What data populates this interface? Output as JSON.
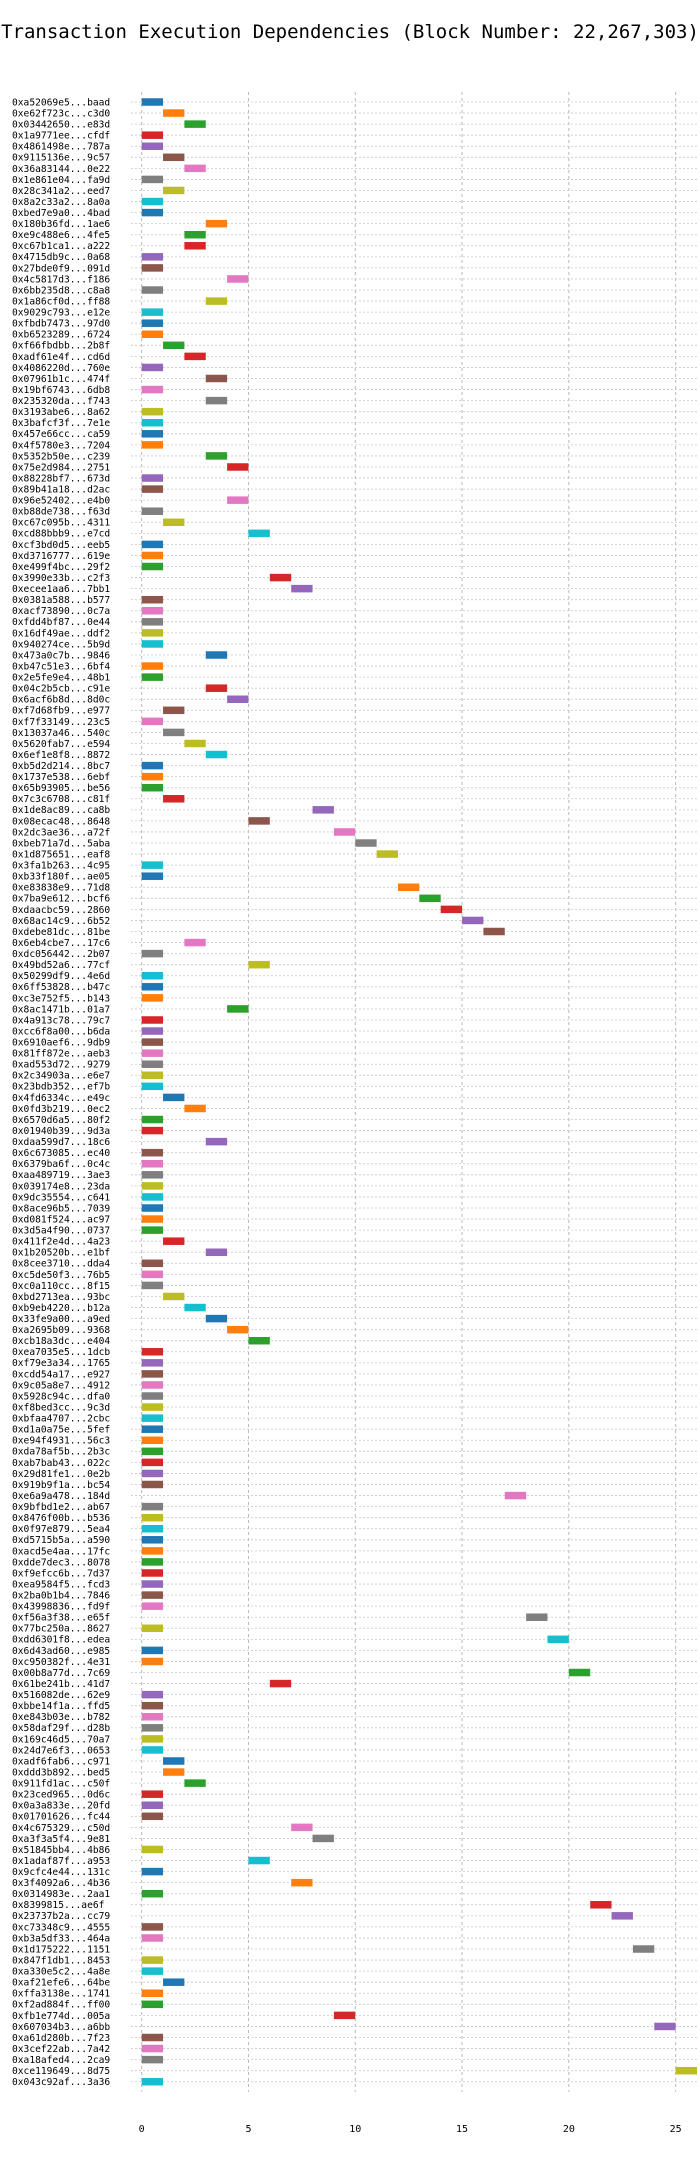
{
  "chart_data": {
    "type": "bar",
    "orientation": "horizontal",
    "title": "Transaction Execution Dependencies (Block Number: 22,267,303)",
    "xlabel": "",
    "ylabel": "",
    "xlim": [
      -0.5,
      26.0
    ],
    "xticks": [
      0,
      5,
      10,
      15,
      20,
      25
    ],
    "grid": true,
    "palette": [
      "#1f77b4",
      "#ff7f0e",
      "#2ca02c",
      "#d62728",
      "#9467bd",
      "#8c564b",
      "#e377c2",
      "#7f7f7f",
      "#bcbd22",
      "#17becf"
    ],
    "categories": [
      "0xa52069e5...baad",
      "0xe62f723c...c3d0",
      "0x03442650...e83d",
      "0x1a9771ee...cfdf",
      "0x4861498e...787a",
      "0x9115136e...9c57",
      "0x36a83144...0e22",
      "0x1e861e04...fa9d",
      "0x28c341a2...eed7",
      "0x8a2c33a2...8a0a",
      "0xbed7e9a0...4bad",
      "0x180b36fd...1ae6",
      "0xe9c488e6...4fe5",
      "0xc67b1ca1...a222",
      "0x4715db9c...0a68",
      "0x27bde0f9...091d",
      "0x4c5817d3...f186",
      "0x6bb235d8...c8a8",
      "0x1a86cf0d...ff88",
      "0x9029c793...e12e",
      "0xfbdb7473...97d0",
      "0xb6523289...6724",
      "0xf66fbdbb...2b8f",
      "0xadf61e4f...cd6d",
      "0x4086220d...760e",
      "0x07961b1c...474f",
      "0x19bf6743...6db8",
      "0x235320da...f743",
      "0x3193abe6...8a62",
      "0x3bafcf3f...7e1e",
      "0x457e66cc...ca59",
      "0x4f5780e3...7204",
      "0x5352b50e...c239",
      "0x75e2d984...2751",
      "0x88228bf7...673d",
      "0x89b41a18...d2ac",
      "0x96e52402...e4b0",
      "0xb88de738...f63d",
      "0xc67c095b...4311",
      "0xcd88bbb9...e7cd",
      "0xcf3bd0d5...eeb5",
      "0xd3716777...619e",
      "0xe499f4bc...29f2",
      "0x3990e33b...c2f3",
      "0xecee1aa6...7bb1",
      "0x0381a588...b577",
      "0xacf73890...0c7a",
      "0xfdd4bf87...0e44",
      "0x16df49ae...ddf2",
      "0x940274ce...5b9d",
      "0x473a0c7b...9846",
      "0xb47c51e3...6bf4",
      "0x2e5fe9e4...48b1",
      "0x04c2b5cb...c91e",
      "0x6acf6b8d...8d0c",
      "0xf7d68fb9...e977",
      "0xf7f33149...23c5",
      "0x13037a46...540c",
      "0x5620fab7...e594",
      "0x6ef1e8f8...8872",
      "0xb5d2d214...8bc7",
      "0x1737e538...6ebf",
      "0x65b93905...be56",
      "0x7c3c6708...c81f",
      "0x1de8ac89...ca8b",
      "0x08ecac48...8648",
      "0x2dc3ae36...a72f",
      "0xbeb71a7d...5aba",
      "0x1d875651...eaf8",
      "0x3fa1b263...4c95",
      "0xb33f180f...ae05",
      "0xe83838e9...71d8",
      "0x7ba9e612...bcf6",
      "0xdaacbc59...2860",
      "0x68ac14c9...6b52",
      "0xdebe81dc...81be",
      "0x6eb4cbe7...17c6",
      "0xdc056442...2b07",
      "0x49bd52a6...77cf",
      "0x50299df9...4e6d",
      "0x6ff53828...b47c",
      "0xc3e752f5...b143",
      "0x8ac1471b...01a7",
      "0x4a913c78...79c7",
      "0xcc6f8a00...b6da",
      "0x6910aef6...9db9",
      "0x81ff872e...aeb3",
      "0xad553d72...9279",
      "0x2c34903a...e6e7",
      "0x23bdb352...ef7b",
      "0x4fd6334c...e49c",
      "0x0fd3b219...0ec2",
      "0x6570d6a5...80f2",
      "0x01940b39...9d3a",
      "0xdaa599d7...18c6",
      "0x6c673085...ec40",
      "0x6379ba6f...0c4c",
      "0xaa489719...3ae3",
      "0x039174e8...23da",
      "0x9dc35554...c641",
      "0x8ace96b5...7039",
      "0xd081f524...ac97",
      "0x3d5a4f90...0737",
      "0x411f2e4d...4a23",
      "0x1b20520b...e1bf",
      "0x8cee3710...dda4",
      "0xc5de50f3...76b5",
      "0xc0a110cc...8f15",
      "0xbd2713ea...93bc",
      "0xb9eb4220...b12a",
      "0x33fe9a00...a9ed",
      "0xa2695b09...9368",
      "0xcb18a3dc...e404",
      "0xea7035e5...1dcb",
      "0xf79e3a34...1765",
      "0xcdd54a17...e927",
      "0x9c05a8e7...4912",
      "0x5928c94c...dfa0",
      "0xf8bed3cc...9c3d",
      "0xbfaa4707...2cbc",
      "0xd1a0a75e...5fef",
      "0xe94f4931...56c3",
      "0xda78af5b...2b3c",
      "0xab7bab43...022c",
      "0x29d81fe1...0e2b",
      "0x919b9f1a...bc54",
      "0xe6a9a478...184d",
      "0x9bfbd1e2...ab67",
      "0x8476f00b...b536",
      "0x0f97e879...5ea4",
      "0xd5715b5a...a590",
      "0xacd5e4aa...17fc",
      "0xdde7dec3...8078",
      "0xf9efcc6b...7d37",
      "0xea9584f5...fcd3",
      "0x2ba0b1b4...7846",
      "0x43998836...fd9f",
      "0xf56a3f38...e65f",
      "0x77bc250a...8627",
      "0xdd6301f8...edea",
      "0x6d43ad60...e985",
      "0xc950382f...4e31",
      "0x00b8a77d...7c69",
      "0x61be241b...41d7",
      "0x516082de...62e9",
      "0xbbe14f1a...ffd5",
      "0xe843b03e...b782",
      "0x58daf29f...d28b",
      "0x169c46d5...70a7",
      "0x24d7e6f3...0653",
      "0xadf6fab6...c971",
      "0xddd3b892...bed5",
      "0x911fd1ac...c50f",
      "0x23ced965...0d6c",
      "0x0a3a833e...20fd",
      "0x01701626...fc44",
      "0x4c675329...c50d",
      "0xa3f3a5f4...9e81",
      "0x51845bb4...4b86",
      "0x1adaf87f...a953",
      "0x9cfc4e44...131c",
      "0x3f4092a6...4b36",
      "0x0314983e...2aa1",
      "0x8399815...ae6f",
      "0x23737b2a...cc79",
      "0xc73348c9...4555",
      "0xb3a5df33...464a",
      "0x1d175222...1151",
      "0x847f1db1...8453",
      "0xa330e5c2...4a8e",
      "0xaf21efe6...64be",
      "0xffa3138e...1741",
      "0xf2ad884f...ff00",
      "0xfb1e774d...005a",
      "0x607034b3...a6bb",
      "0xa61d280b...7f23",
      "0x3cef22ab...7a42",
      "0xa18afed4...2ca9",
      "0xce119649...8d75",
      "0x043c92af...3a36"
    ],
    "series": [
      {
        "start": [
          0,
          1,
          2,
          0,
          0,
          1,
          2,
          0,
          1,
          0,
          0,
          3,
          2,
          2,
          0,
          0,
          4,
          0,
          3,
          0,
          0,
          0,
          1,
          2,
          0,
          3,
          0,
          3,
          0,
          0,
          0,
          0,
          3,
          4,
          0,
          0,
          4,
          0,
          1,
          5,
          0,
          0,
          0,
          6,
          7,
          0,
          0,
          0,
          0,
          0,
          3,
          0,
          0,
          3,
          4,
          1,
          0,
          1,
          2,
          3,
          0,
          0,
          0,
          1,
          8,
          5,
          9,
          10,
          11,
          0,
          0,
          12,
          13,
          14,
          15,
          16,
          2,
          0,
          5,
          0,
          0,
          0,
          4,
          0,
          0,
          0,
          0,
          0,
          0,
          0,
          1,
          2,
          0,
          0,
          3,
          0,
          0,
          0,
          0,
          0,
          0,
          0,
          0,
          1,
          3,
          0,
          0,
          0,
          1,
          2,
          3,
          4,
          5,
          0,
          0,
          0,
          0,
          0,
          0,
          0,
          0,
          0,
          0,
          0,
          0,
          0,
          17,
          0,
          0,
          0,
          0,
          0,
          0,
          0,
          0,
          0,
          0,
          18,
          0,
          19,
          0,
          0,
          20,
          6,
          0,
          0,
          0,
          0,
          0,
          0,
          1,
          1,
          2,
          0,
          0,
          0,
          7,
          8,
          0,
          5,
          0,
          7,
          0,
          21,
          22,
          0,
          0,
          23,
          0,
          0,
          1,
          0,
          0,
          9,
          24,
          0,
          0,
          0,
          25,
          0
        ],
        "end": [
          1,
          2,
          3,
          1,
          1,
          2,
          3,
          1,
          2,
          1,
          1,
          4,
          3,
          3,
          1,
          1,
          5,
          1,
          4,
          1,
          1,
          1,
          2,
          3,
          1,
          4,
          1,
          4,
          1,
          1,
          1,
          1,
          4,
          5,
          1,
          1,
          5,
          1,
          2,
          6,
          1,
          1,
          1,
          7,
          8,
          1,
          1,
          1,
          1,
          1,
          4,
          1,
          1,
          4,
          5,
          2,
          1,
          2,
          3,
          4,
          1,
          1,
          1,
          2,
          9,
          6,
          10,
          11,
          12,
          1,
          1,
          13,
          14,
          15,
          16,
          17,
          3,
          1,
          6,
          1,
          1,
          1,
          5,
          1,
          1,
          1,
          1,
          1,
          1,
          1,
          2,
          3,
          1,
          1,
          4,
          1,
          1,
          1,
          1,
          1,
          1,
          1,
          1,
          2,
          4,
          1,
          1,
          1,
          2,
          3,
          4,
          5,
          6,
          1,
          1,
          1,
          1,
          1,
          1,
          1,
          1,
          1,
          1,
          1,
          1,
          1,
          18,
          1,
          1,
          1,
          1,
          1,
          1,
          1,
          1,
          1,
          1,
          19,
          1,
          20,
          1,
          1,
          21,
          7,
          1,
          1,
          1,
          1,
          1,
          1,
          2,
          2,
          3,
          1,
          1,
          1,
          8,
          9,
          1,
          6,
          1,
          8,
          1,
          22,
          23,
          1,
          1,
          24,
          1,
          1,
          2,
          1,
          1,
          10,
          25,
          1,
          1,
          1,
          26,
          1
        ]
      }
    ],
    "colors": [
      0,
      1,
      2,
      3,
      4,
      5,
      6,
      7,
      8,
      9,
      0,
      1,
      2,
      3,
      4,
      5,
      6,
      7,
      8,
      9,
      0,
      1,
      2,
      3,
      4,
      5,
      6,
      7,
      8,
      9,
      0,
      1,
      2,
      3,
      4,
      5,
      6,
      7,
      8,
      9,
      0,
      1,
      2,
      3,
      4,
      5,
      6,
      7,
      8,
      9,
      0,
      1,
      2,
      3,
      4,
      5,
      6,
      7,
      8,
      9,
      0,
      1,
      2,
      3,
      4,
      5,
      6,
      7,
      8,
      9,
      0,
      1,
      2,
      3,
      4,
      5,
      6,
      7,
      8,
      9,
      0,
      1,
      2,
      3,
      4,
      5,
      6,
      7,
      8,
      9,
      0,
      1,
      2,
      3,
      4,
      5,
      6,
      7,
      8,
      9,
      0,
      1,
      2,
      3,
      4,
      5,
      6,
      7,
      8,
      9,
      0,
      1,
      2,
      3,
      4,
      5,
      6,
      7,
      8,
      9,
      0,
      1,
      2,
      3,
      4,
      5,
      6,
      7,
      8,
      9,
      0,
      1,
      2,
      3,
      4,
      5,
      6,
      7,
      8,
      9,
      0,
      1,
      2,
      3,
      4,
      5,
      6,
      7,
      8,
      9,
      0,
      1,
      2,
      3,
      4,
      5,
      6,
      7,
      8,
      9,
      0,
      1,
      2,
      3,
      4,
      5,
      6,
      7,
      8,
      9,
      0,
      1,
      2,
      3,
      4,
      5,
      6,
      7,
      8,
      9,
      0,
      1,
      2,
      3,
      4,
      5,
      6,
      7,
      8,
      9
    ]
  }
}
